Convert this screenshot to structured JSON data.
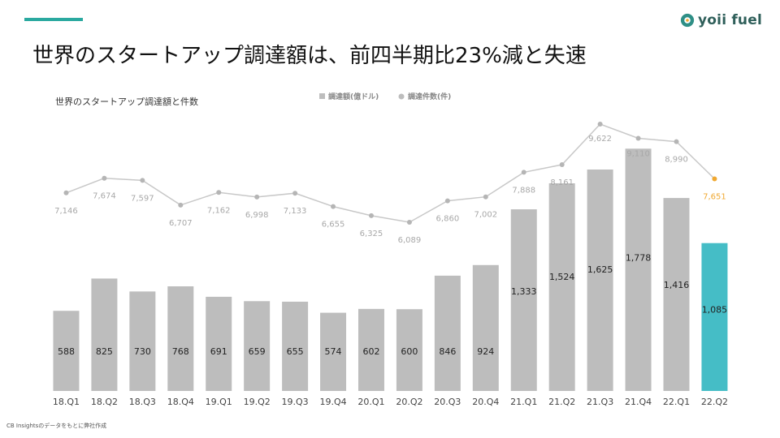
{
  "slide": {
    "title": "世界のスタートアップ調達額は、前四半期比23%減と失速",
    "logo_text": "yoii fuel",
    "source_note": "CB Insightsのデータをもとに弊社作成"
  },
  "colors": {
    "accent": "#2aa9a0",
    "bar": "#bdbdbd",
    "bar_highlight": "#45bdc6",
    "line": "#c8c8c8",
    "point_highlight": "#f0a830",
    "label_highlight": "#f0a830"
  },
  "chart_data": {
    "type": "bar",
    "title": "世界のスタートアップ調達額と件数",
    "categories": [
      "18.Q1",
      "18.Q2",
      "18.Q3",
      "18.Q4",
      "19.Q1",
      "19.Q2",
      "19.Q3",
      "19.Q4",
      "20.Q1",
      "20.Q2",
      "20.Q3",
      "20.Q4",
      "21.Q1",
      "21.Q2",
      "21.Q3",
      "21.Q4",
      "22.Q1",
      "22.Q2"
    ],
    "series": [
      {
        "name": "調達額(億ドル)",
        "type": "bar",
        "values": [
          588,
          825,
          730,
          768,
          691,
          659,
          655,
          574,
          602,
          600,
          846,
          924,
          1333,
          1524,
          1625,
          1778,
          1416,
          1085
        ],
        "labels": [
          "588",
          "825",
          "730",
          "768",
          "691",
          "659",
          "655",
          "574",
          "602",
          "600",
          "846",
          "924",
          "1,333",
          "1,524",
          "1,625",
          "1,778",
          "1,416",
          "1,085"
        ]
      },
      {
        "name": "調達件数(件)",
        "type": "line",
        "values": [
          7146,
          7674,
          7597,
          6707,
          7162,
          6998,
          7133,
          6655,
          6325,
          6089,
          6860,
          7002,
          7888,
          8161,
          9622,
          9110,
          8990,
          7651
        ],
        "labels": [
          "7,146",
          "7,674",
          "7,597",
          "6,707",
          "7,162",
          "6,998",
          "7,133",
          "6,655",
          "6,325",
          "6,089",
          "6,860",
          "7,002",
          "7,888",
          "8,161",
          "9,622",
          "9,110",
          "8,990",
          "7,651"
        ]
      }
    ],
    "highlight_index": 17,
    "legend_position": "top"
  }
}
